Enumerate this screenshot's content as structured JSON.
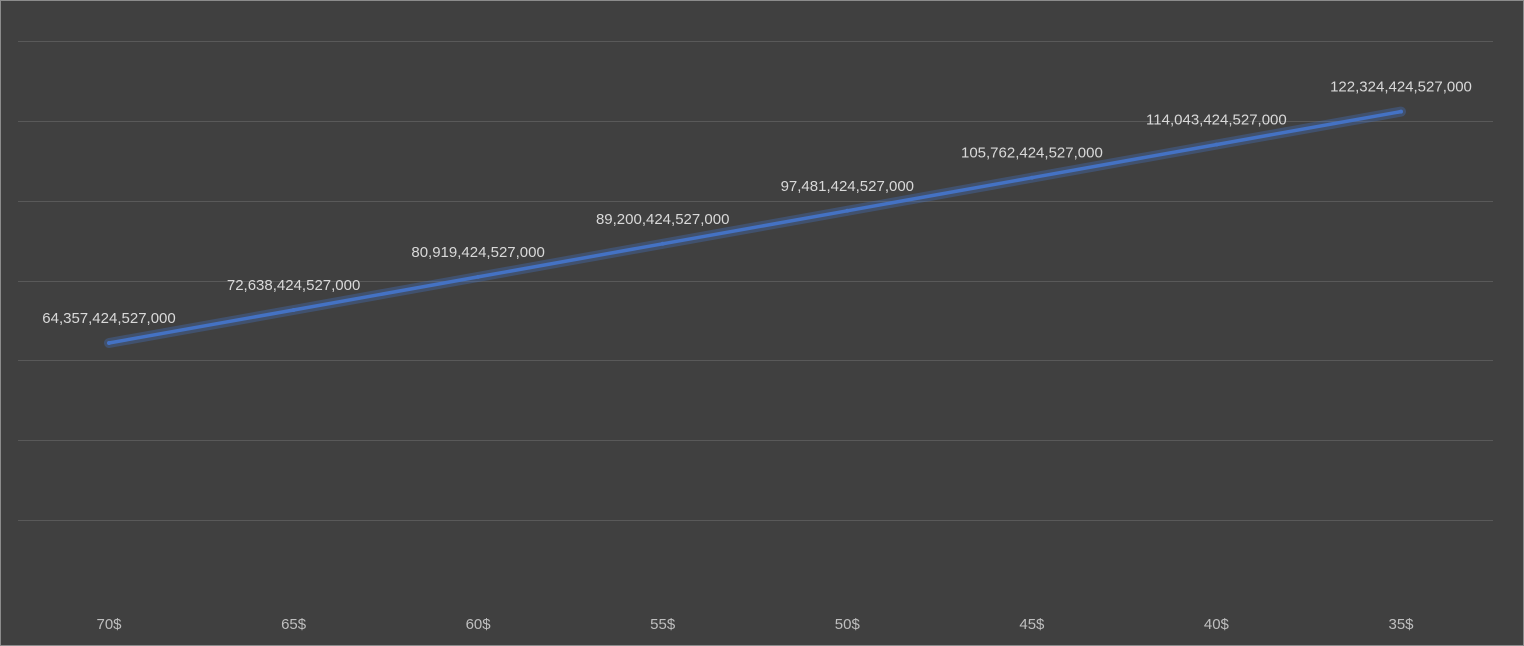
{
  "chart_data": {
    "type": "line",
    "title": "",
    "xlabel": "",
    "ylabel": "",
    "categories": [
      "70$",
      "65$",
      "60$",
      "55$",
      "50$",
      "45$",
      "40$",
      "35$"
    ],
    "series": [
      {
        "values": [
          64357424527000,
          72638424527000,
          80919424527000,
          89200424527000,
          97481424527000,
          105762424527000,
          114043424527000,
          122324424527000
        ],
        "data_labels": [
          "64,357,424,527,000",
          "72,638,424,527,000",
          "80,919,424,527,000",
          "89,200,424,527,000",
          "97,481,424,527,000",
          "105,762,424,527,000",
          "114,043,424,527,000",
          "122,324,424,527,000"
        ],
        "color": "#4472c4"
      }
    ],
    "ylim": [
      0,
      140000000000000
    ],
    "y_gridlines": [
      0,
      20000000000000,
      40000000000000,
      60000000000000,
      80000000000000,
      100000000000000,
      120000000000000,
      140000000000000
    ],
    "y_tick_labels_visible": false,
    "grid": true,
    "legend": "none"
  },
  "colors": {
    "background": "#404040",
    "gridline": "#595959",
    "text": "#d9d9d9"
  }
}
